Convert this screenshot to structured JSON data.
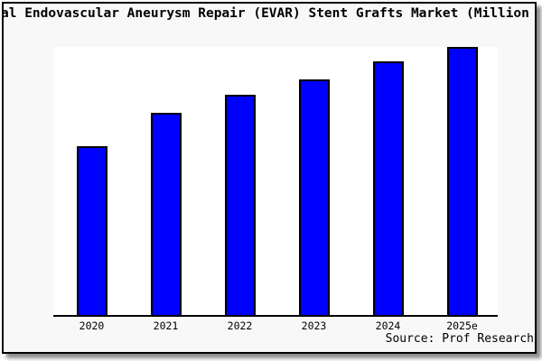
{
  "window": {
    "background_color": "#F8F8F8",
    "border_color": "#000000",
    "plot_background_color": "#FFFFFF"
  },
  "chart_data": {
    "type": "bar",
    "title": "al Endovascular Aneurysm Repair (EVAR) Stent Grafts Market (Million",
    "categories": [
      "2020",
      "2021",
      "2022",
      "2023",
      "2024",
      "2025e"
    ],
    "values": [
      63,
      75.5,
      82,
      88,
      94.5,
      100
    ],
    "values_scale": "percent of tallest bar (no y-axis tick labels visible)",
    "xlabel": "",
    "ylabel": "",
    "ylim": [
      0,
      100
    ],
    "grid": false,
    "legend": "none",
    "bar_color": "#0000FF",
    "bar_border_color": "#000000",
    "source_note": "Source: Prof Research"
  }
}
